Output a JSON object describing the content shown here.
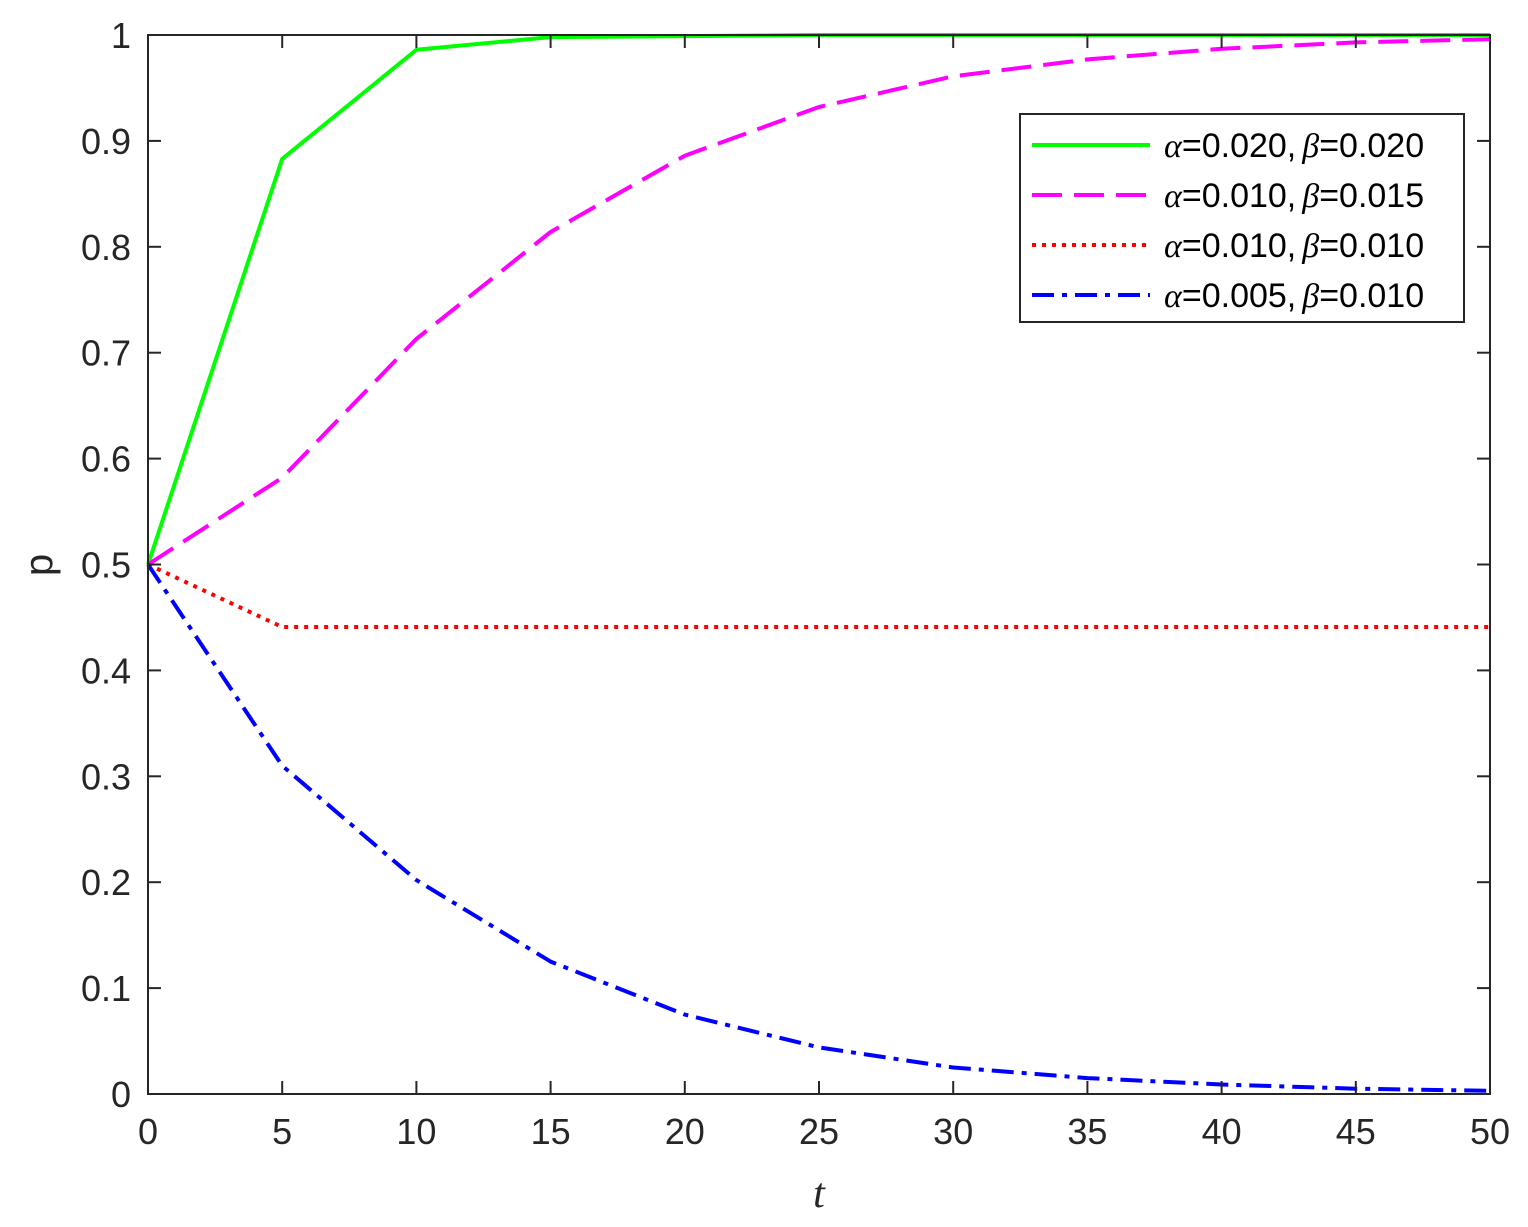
{
  "chart_data": {
    "type": "line",
    "xlabel": "t",
    "ylabel": "p",
    "xlim": [
      0,
      50
    ],
    "ylim": [
      0,
      1
    ],
    "x_ticks": [
      0,
      5,
      10,
      15,
      20,
      25,
      30,
      35,
      40,
      45,
      50
    ],
    "x_tick_labels": [
      "0",
      "5",
      "10",
      "15",
      "20",
      "25",
      "30",
      "35",
      "40",
      "45",
      "50"
    ],
    "y_ticks": [
      0,
      0.1,
      0.2,
      0.3,
      0.4,
      0.5,
      0.6,
      0.7,
      0.8,
      0.9,
      1
    ],
    "y_tick_labels": [
      "0",
      "0.1",
      "0.2",
      "0.3",
      "0.4",
      "0.5",
      "0.6",
      "0.7",
      "0.8",
      "0.9",
      "1"
    ],
    "grid": false,
    "legend_position": "top-right",
    "x": [
      0,
      5,
      10,
      15,
      20,
      25,
      30,
      35,
      40,
      45,
      50
    ],
    "series": [
      {
        "name": "α=0.020, β=0.020",
        "alpha_value": "=0.020,",
        "beta_value": "=0.020",
        "color": "#00ff00",
        "style": "solid",
        "values": [
          0.5,
          0.883,
          0.986,
          0.998,
          0.999,
          1.0,
          1.0,
          1.0,
          1.0,
          1.0,
          1.0
        ]
      },
      {
        "name": "α=0.010, β=0.015",
        "alpha_value": "=0.010,",
        "beta_value": "=0.015",
        "color": "#ff00ff",
        "style": "dashed",
        "values": [
          0.5,
          0.582,
          0.713,
          0.814,
          0.886,
          0.932,
          0.961,
          0.977,
          0.987,
          0.993,
          0.996
        ]
      },
      {
        "name": "α=0.010, β=0.010",
        "alpha_value": "=0.010,",
        "beta_value": "=0.010",
        "color": "#ff0000",
        "style": "dotted",
        "values": [
          0.5,
          0.441,
          0.441,
          0.441,
          0.441,
          0.441,
          0.441,
          0.441,
          0.441,
          0.441,
          0.441
        ]
      },
      {
        "name": "α=0.005, β=0.010",
        "alpha_value": "=0.005,",
        "beta_value": "=0.010",
        "color": "#0000ff",
        "style": "dashdot",
        "values": [
          0.5,
          0.31,
          0.202,
          0.125,
          0.075,
          0.044,
          0.025,
          0.015,
          0.009,
          0.005,
          0.003
        ]
      }
    ]
  }
}
